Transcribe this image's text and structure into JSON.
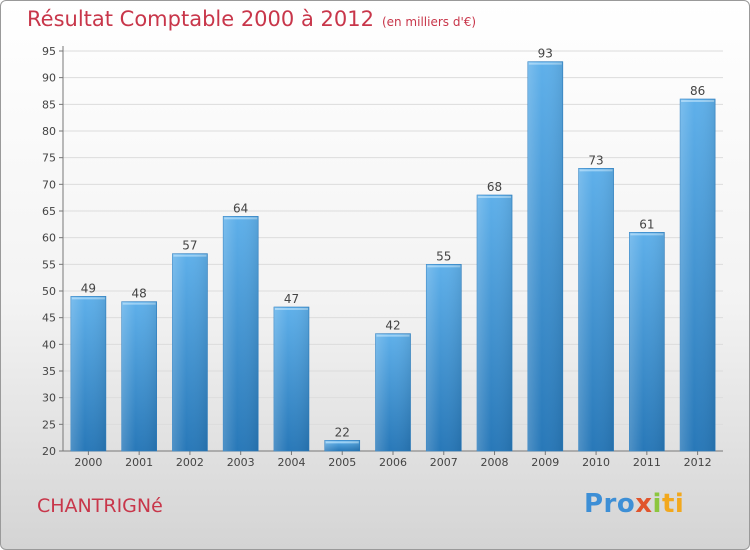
{
  "chart_data": {
    "type": "bar",
    "title": "Résultat Comptable 2000 à 2012",
    "subtitle": "(en milliers d'€)",
    "categories": [
      "2000",
      "2001",
      "2002",
      "2003",
      "2004",
      "2005",
      "2006",
      "2007",
      "2008",
      "2009",
      "2010",
      "2011",
      "2012"
    ],
    "values": [
      49,
      48,
      57,
      64,
      47,
      22,
      42,
      55,
      68,
      93,
      73,
      61,
      86
    ],
    "ylim": [
      20,
      95
    ],
    "yticks": [
      20,
      25,
      30,
      35,
      40,
      45,
      50,
      55,
      60,
      65,
      70,
      75,
      80,
      85,
      90,
      95
    ],
    "grid": true,
    "xlabel": "",
    "ylabel": "",
    "bar_color": "#3f93d6",
    "bar_color_top": "#5fb0ea",
    "bar_color_bottom": "#2878b8"
  },
  "location": "CHANTRIGNé",
  "logo": {
    "part1": "Pro",
    "part2": "x",
    "part3": "i",
    "part4": "ti"
  },
  "colors": {
    "title": "#c8364a",
    "label": "#444444"
  }
}
